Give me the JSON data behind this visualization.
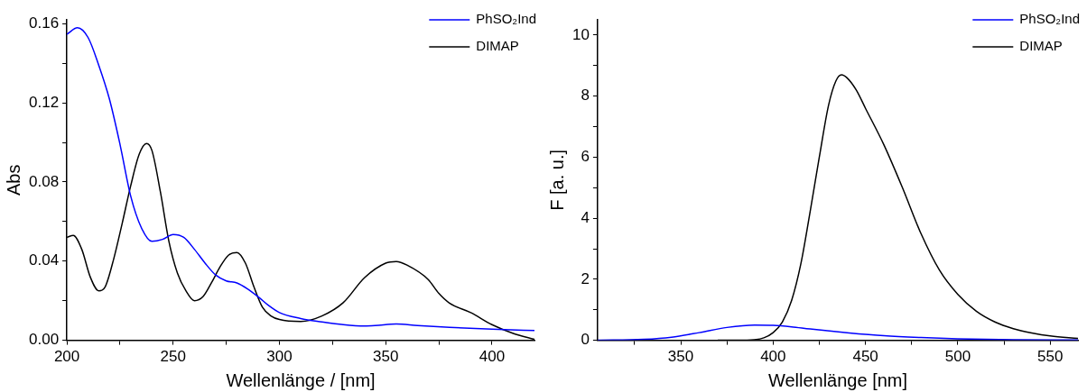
{
  "chart_data": [
    {
      "type": "line",
      "xlabel": "Wellenlänge / [nm]",
      "ylabel": "Abs",
      "xlim": [
        200,
        420
      ],
      "ylim": [
        0,
        0.162
      ],
      "xticks": [
        200,
        {
          "value": 225,
          "label": null
        },
        250,
        {
          "value": 275,
          "label": null
        },
        300,
        {
          "value": 325,
          "label": null
        },
        350,
        {
          "value": 375,
          "label": null
        },
        400
      ],
      "yticks": [
        "0.00",
        {
          "value": 0.02,
          "label": null
        },
        {
          "value": 0.04,
          "label": "0.04"
        },
        {
          "value": 0.06,
          "label": null
        },
        {
          "value": 0.08,
          "label": "0.08"
        },
        {
          "value": 0.1,
          "label": null
        },
        {
          "value": 0.12,
          "label": "0.12"
        },
        {
          "value": 0.14,
          "label": null
        },
        {
          "value": 0.16,
          "label": "0.16"
        }
      ],
      "grid": false,
      "legend": "top right",
      "marker": "none",
      "line_style": "solid",
      "series": [
        {
          "name": "PhSO₂Ind",
          "color": "#0000ff",
          "x": [
            200,
            205,
            210,
            215,
            220,
            225,
            230,
            235,
            240,
            245,
            250,
            255,
            260,
            265,
            270,
            275,
            280,
            285,
            290,
            295,
            300,
            310,
            320,
            330,
            340,
            345,
            355,
            365,
            380,
            400,
            420
          ],
          "values": [
            0.1547,
            0.158,
            0.153,
            0.139,
            0.122,
            0.099,
            0.073,
            0.057,
            0.05,
            0.051,
            0.0535,
            0.052,
            0.046,
            0.039,
            0.033,
            0.03,
            0.029,
            0.026,
            0.022,
            0.0175,
            0.014,
            0.011,
            0.0093,
            0.0079,
            0.0072,
            0.0074,
            0.0082,
            0.0074,
            0.0065,
            0.0056,
            0.0049
          ]
        },
        {
          "name": "DIMAP",
          "color": "#000000",
          "x": [
            200,
            203,
            207,
            211,
            215,
            218,
            222,
            226,
            230,
            234,
            237.5,
            240,
            244,
            248,
            252,
            256,
            260,
            264,
            268,
            272,
            276,
            280,
            284,
            288,
            292,
            296,
            300,
            310,
            320,
            330,
            340,
            350,
            355,
            360,
            370,
            375,
            380,
            390,
            400,
            410,
            420
          ],
          "values": [
            0.052,
            0.053,
            0.046,
            0.032,
            0.025,
            0.027,
            0.041,
            0.059,
            0.078,
            0.094,
            0.0995,
            0.096,
            0.075,
            0.05,
            0.034,
            0.025,
            0.02,
            0.022,
            0.029,
            0.037,
            0.043,
            0.0444,
            0.039,
            0.027,
            0.0167,
            0.0123,
            0.0105,
            0.0095,
            0.0123,
            0.019,
            0.0316,
            0.039,
            0.0398,
            0.038,
            0.0307,
            0.0237,
            0.0188,
            0.014,
            0.0079,
            0.0035,
            0.0005
          ]
        }
      ]
    },
    {
      "type": "line",
      "xlabel": "Wellenlänge [nm]",
      "ylabel": "F [a. u.]",
      "xlim": [
        305,
        565
      ],
      "ylim": [
        0,
        10.5
      ],
      "xticks": [
        {
          "value": 325,
          "label": null
        },
        350,
        {
          "value": 375,
          "label": null
        },
        400,
        {
          "value": 425,
          "label": null
        },
        450,
        {
          "value": 475,
          "label": null
        },
        500,
        {
          "value": 525,
          "label": null
        },
        550
      ],
      "yticks": [
        0,
        {
          "value": 1,
          "label": null
        },
        2,
        {
          "value": 3,
          "label": null
        },
        4,
        {
          "value": 5,
          "label": null
        },
        6,
        {
          "value": 7,
          "label": null
        },
        8,
        {
          "value": 9,
          "label": null
        },
        10
      ],
      "grid": false,
      "legend": "top right",
      "marker": "none",
      "line_style": "solid",
      "series": [
        {
          "name": "PhSO₂Ind",
          "color": "#0000ff",
          "x": [
            305,
            330,
            345,
            360,
            375,
            390,
            400,
            410,
            420,
            440,
            460,
            480,
            500,
            530,
            565
          ],
          "values": [
            0,
            0.03,
            0.1,
            0.25,
            0.42,
            0.5,
            0.49,
            0.44,
            0.37,
            0.25,
            0.15,
            0.09,
            0.05,
            0.02,
            0.01
          ]
        },
        {
          "name": "DIMAP",
          "color": "#000000",
          "x": [
            370,
            380,
            390,
            395,
            400,
            405,
            410,
            415,
            420,
            425,
            430,
            434,
            437,
            440,
            445,
            450,
            460,
            470,
            480,
            490,
            500,
            510,
            520,
            530,
            540,
            550,
            565
          ],
          "values": [
            0,
            0,
            0.02,
            0.08,
            0.25,
            0.6,
            1.3,
            2.5,
            4.2,
            6.0,
            7.7,
            8.5,
            8.7,
            8.6,
            8.2,
            7.6,
            6.4,
            5.0,
            3.5,
            2.3,
            1.5,
            0.95,
            0.6,
            0.38,
            0.24,
            0.14,
            0.06
          ]
        }
      ]
    }
  ]
}
